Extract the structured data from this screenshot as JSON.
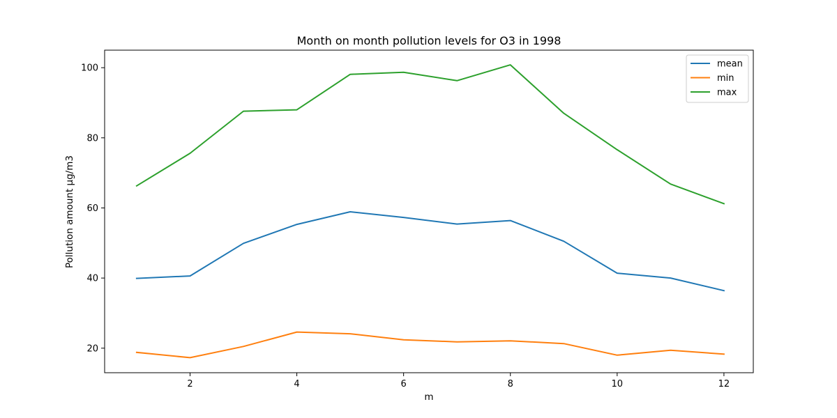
{
  "chart_data": {
    "type": "line",
    "title": "Month on month pollution levels for O3 in 1998",
    "xlabel": "m",
    "ylabel": "Pollution amount µg/m3",
    "x": [
      1,
      2,
      3,
      4,
      5,
      6,
      7,
      8,
      9,
      10,
      11,
      12
    ],
    "xlim": [
      0.4,
      12.55
    ],
    "ylim": [
      13.0,
      105.0
    ],
    "xticks": [
      2,
      4,
      6,
      8,
      10,
      12
    ],
    "yticks": [
      20,
      40,
      60,
      80,
      100
    ],
    "grid": false,
    "legend_position": "top-right",
    "series": [
      {
        "name": "mean",
        "color": "#1f77b4",
        "values": [
          39.9,
          40.6,
          49.9,
          55.3,
          58.9,
          57.3,
          55.4,
          56.4,
          50.5,
          41.4,
          40.0,
          36.4
        ]
      },
      {
        "name": "min",
        "color": "#ff7f0e",
        "values": [
          18.8,
          17.3,
          20.5,
          24.6,
          24.1,
          22.4,
          21.8,
          22.1,
          21.3,
          18.0,
          19.4,
          18.3
        ]
      },
      {
        "name": "max",
        "color": "#2ca02c",
        "values": [
          66.3,
          75.6,
          87.6,
          88.0,
          98.1,
          98.7,
          96.3,
          100.8,
          87.0,
          76.6,
          66.8,
          61.2
        ]
      }
    ]
  }
}
